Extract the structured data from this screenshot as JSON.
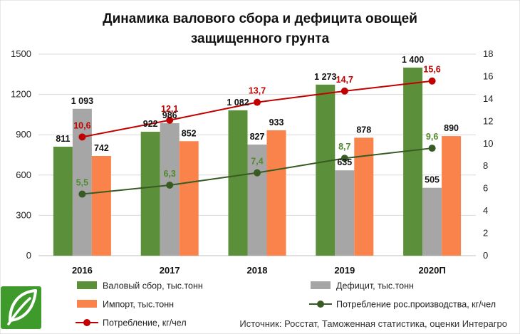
{
  "title_line1": "Динамика валового сбора и дефицита овощей",
  "title_line2": "защищенного грунта",
  "source": "Источник: Росстат, Таможенная статистика, оценки Интерагро",
  "logo": "leaf-logo",
  "colors": {
    "harvest": "#5b8f3a",
    "deficit": "#a6a6a6",
    "import": "#f9834a",
    "consumption_local": "#375b23",
    "consumption": "#c00000"
  },
  "chart_data": {
    "type": "bar",
    "categories": [
      "2016",
      "2017",
      "2018",
      "2019",
      "2020П"
    ],
    "y_left": {
      "min": 0,
      "max": 1500,
      "ticks": [
        "0",
        "300",
        "600",
        "900",
        "1200",
        "1500"
      ]
    },
    "y_right": {
      "min": 0,
      "max": 18,
      "ticks": [
        "0",
        "2",
        "4",
        "6",
        "8",
        "10",
        "12",
        "14",
        "16",
        "18"
      ]
    },
    "grid": true,
    "legend_position": "bottom",
    "series": [
      {
        "name": "Валовый сбор, тыс.тонн",
        "kind": "bar",
        "axis": "left",
        "color": "#5b8f3a",
        "values": [
          811,
          922,
          1082,
          1273,
          1400
        ],
        "labels": [
          "811",
          "922",
          "1 082",
          "1 273",
          "1 400"
        ],
        "label_color": "#111111"
      },
      {
        "name": "Дефицит, тыс.тонн",
        "kind": "bar",
        "axis": "left",
        "color": "#a6a6a6",
        "values": [
          1093,
          986,
          827,
          635,
          505
        ],
        "labels": [
          "1 093",
          "986",
          "827",
          "635",
          "505"
        ],
        "label_color": "#111111"
      },
      {
        "name": "Импорт, тыс.тонн",
        "kind": "bar",
        "axis": "left",
        "color": "#f9834a",
        "values": [
          742,
          852,
          933,
          878,
          890
        ],
        "labels": [
          "742",
          "852",
          "933",
          "878",
          "890"
        ],
        "label_color": "#111111"
      },
      {
        "name": "Потребление рос.производства, кг/чел",
        "kind": "line",
        "axis": "right",
        "color": "#375b23",
        "values": [
          5.5,
          6.3,
          7.4,
          8.7,
          9.6
        ],
        "labels": [
          "5,5",
          "6,3",
          "7,4",
          "8,7",
          "9,6"
        ],
        "label_color": "#4f8a2b"
      },
      {
        "name": "Потребление, кг/чел",
        "kind": "line",
        "axis": "right",
        "color": "#c00000",
        "values": [
          10.6,
          12.1,
          13.7,
          14.7,
          15.6
        ],
        "labels": [
          "10,6",
          "12,1",
          "13,7",
          "14,7",
          "15,6"
        ],
        "label_color": "#c00000"
      }
    ]
  }
}
